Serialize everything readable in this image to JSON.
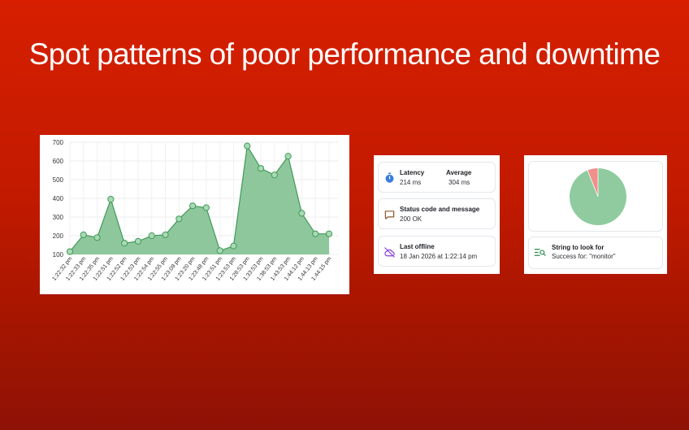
{
  "headline": "Spot patterns of poor performance and downtime",
  "colors": {
    "area_fill": "#8fc79c",
    "line": "#3f9a58",
    "pie_green": "#8fcb9e",
    "pie_red": "#f0908a"
  },
  "chart_data": {
    "type": "area",
    "x": [
      "1:22:32 pm",
      "1:22:33 pm",
      "1:22:35 pm",
      "1:22:51 pm",
      "1:22:52 pm",
      "1:22:53 pm",
      "1:22:54 pm",
      "1:22:55 pm",
      "1:23:09 pm",
      "1:23:20 pm",
      "1:23:48 pm",
      "1:23:51 pm",
      "1:23:53 pm",
      "1:28:53 pm",
      "1:33:53 pm",
      "1:38:53 pm",
      "1:43:53 pm",
      "1:44:12 pm",
      "1:44:13 pm",
      "1:44:15 pm"
    ],
    "values": [
      115,
      205,
      190,
      395,
      160,
      170,
      200,
      205,
      290,
      360,
      350,
      120,
      145,
      680,
      560,
      525,
      625,
      320,
      210,
      210
    ],
    "yticks": [
      "100",
      "200",
      "300",
      "400",
      "500",
      "600",
      "700"
    ],
    "ylim": [
      100,
      700
    ],
    "grid": true
  },
  "status": {
    "latency_label": "Latency",
    "latency_value": "214 ms",
    "average_label": "Average",
    "average_value": "304 ms",
    "status_label": "Status code and message",
    "status_value": "200 OK",
    "offline_label": "Last offline",
    "offline_value": "18 Jan 2026 at 1:22:14 pm"
  },
  "pie": {
    "success_fraction": 0.94,
    "failure_fraction": 0.06
  },
  "string_check": {
    "label": "String to look for",
    "value": "Success for: \"monitor\""
  },
  "icons": [
    "stopwatch-icon",
    "message-icon",
    "cloud-off-icon",
    "text-search-icon"
  ]
}
